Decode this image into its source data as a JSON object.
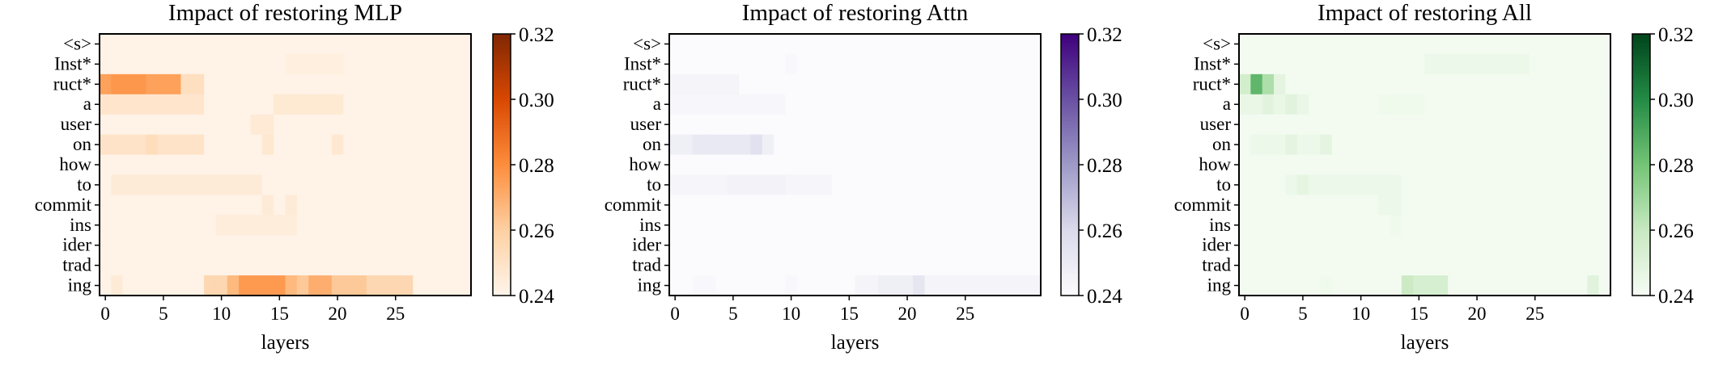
{
  "chart_data": [
    {
      "type": "heatmap",
      "title": "Impact of restoring MLP",
      "xlabel": "layers",
      "ylabel": "",
      "x_ticks": [
        0,
        5,
        10,
        15,
        20,
        25
      ],
      "n_layers": 32,
      "rows": [
        "<s>",
        "Inst*",
        "ruct*",
        "a",
        "user",
        "on",
        "how",
        "to",
        "commit",
        "ins",
        "ider",
        "trad",
        "ing"
      ],
      "colorbar": {
        "min": 0.24,
        "max": 0.32,
        "ticks": [
          "0.24",
          "0.26",
          "0.28",
          "0.30",
          "0.32"
        ],
        "colors": [
          "#fff5eb",
          "#fdd0a2",
          "#fd8d3c",
          "#d94801",
          "#7f2704"
        ]
      },
      "background": 0.2415,
      "cells": [
        {
          "row": 1,
          "layers": [
            16,
            20
          ],
          "value": 0.2435
        },
        {
          "row": 2,
          "layers": [
            0,
            6
          ],
          "value": 0.274
        },
        {
          "row": 2,
          "layers": [
            1,
            3
          ],
          "value": 0.277
        },
        {
          "row": 2,
          "layers": [
            7,
            8
          ],
          "value": 0.252
        },
        {
          "row": 3,
          "layers": [
            0,
            8
          ],
          "value": 0.2485
        },
        {
          "row": 3,
          "layers": [
            15,
            20
          ],
          "value": 0.2465
        },
        {
          "row": 4,
          "layers": [
            13,
            14
          ],
          "value": 0.246
        },
        {
          "row": 5,
          "layers": [
            0,
            8
          ],
          "value": 0.2495
        },
        {
          "row": 5,
          "layers": [
            4,
            4
          ],
          "value": 0.253
        },
        {
          "row": 5,
          "layers": [
            14,
            14
          ],
          "value": 0.247
        },
        {
          "row": 5,
          "layers": [
            20,
            20
          ],
          "value": 0.247
        },
        {
          "row": 7,
          "layers": [
            1,
            13
          ],
          "value": 0.2455
        },
        {
          "row": 8,
          "layers": [
            14,
            14
          ],
          "value": 0.2455
        },
        {
          "row": 8,
          "layers": [
            16,
            16
          ],
          "value": 0.2455
        },
        {
          "row": 9,
          "layers": [
            10,
            16
          ],
          "value": 0.2445
        },
        {
          "row": 12,
          "layers": [
            1,
            1
          ],
          "value": 0.2455
        },
        {
          "row": 12,
          "layers": [
            9,
            26
          ],
          "value": 0.256
        },
        {
          "row": 12,
          "layers": [
            11,
            16
          ],
          "value": 0.267
        },
        {
          "row": 12,
          "layers": [
            12,
            15
          ],
          "value": 0.276
        },
        {
          "row": 12,
          "layers": [
            17,
            22
          ],
          "value": 0.262
        },
        {
          "row": 12,
          "layers": [
            18,
            19
          ],
          "value": 0.27
        }
      ]
    },
    {
      "type": "heatmap",
      "title": "Impact of restoring Attn",
      "xlabel": "layers",
      "ylabel": "",
      "x_ticks": [
        0,
        5,
        10,
        15,
        20,
        25
      ],
      "n_layers": 32,
      "rows": [
        "<s>",
        "Inst*",
        "ruct*",
        "a",
        "user",
        "on",
        "how",
        "to",
        "commit",
        "ins",
        "ider",
        "trad",
        "ing"
      ],
      "colorbar": {
        "min": 0.24,
        "max": 0.32,
        "ticks": [
          "0.24",
          "0.26",
          "0.28",
          "0.30",
          "0.32"
        ],
        "colors": [
          "#fcfbfd",
          "#dadaeb",
          "#9e9ac8",
          "#6a51a3",
          "#3f007d"
        ]
      },
      "background": 0.2405,
      "cells": [
        {
          "row": 1,
          "layers": [
            10,
            10
          ],
          "value": 0.2425
        },
        {
          "row": 2,
          "layers": [
            0,
            5
          ],
          "value": 0.2445
        },
        {
          "row": 3,
          "layers": [
            0,
            9
          ],
          "value": 0.243
        },
        {
          "row": 5,
          "layers": [
            0,
            8
          ],
          "value": 0.2475
        },
        {
          "row": 5,
          "layers": [
            2,
            6
          ],
          "value": 0.251
        },
        {
          "row": 5,
          "layers": [
            7,
            7
          ],
          "value": 0.256
        },
        {
          "row": 7,
          "layers": [
            0,
            13
          ],
          "value": 0.2435
        },
        {
          "row": 7,
          "layers": [
            5,
            9
          ],
          "value": 0.2455
        },
        {
          "row": 12,
          "layers": [
            2,
            3
          ],
          "value": 0.2425
        },
        {
          "row": 12,
          "layers": [
            10,
            10
          ],
          "value": 0.2425
        },
        {
          "row": 12,
          "layers": [
            16,
            31
          ],
          "value": 0.2445
        },
        {
          "row": 12,
          "layers": [
            18,
            21
          ],
          "value": 0.2475
        },
        {
          "row": 12,
          "layers": [
            21,
            21
          ],
          "value": 0.253
        }
      ]
    },
    {
      "type": "heatmap",
      "title": "Impact of restoring All",
      "xlabel": "layers",
      "ylabel": "",
      "x_ticks": [
        0,
        5,
        10,
        15,
        20,
        25
      ],
      "n_layers": 32,
      "rows": [
        "<s>",
        "Inst*",
        "ruct*",
        "a",
        "user",
        "on",
        "how",
        "to",
        "commit",
        "ins",
        "ider",
        "trad",
        "ing"
      ],
      "colorbar": {
        "min": 0.24,
        "max": 0.32,
        "ticks": [
          "0.24",
          "0.26",
          "0.28",
          "0.30",
          "0.32"
        ],
        "colors": [
          "#f7fcf5",
          "#c7e9c0",
          "#74c476",
          "#238b45",
          "#00441b"
        ]
      },
      "background": 0.2415,
      "cells": [
        {
          "row": 1,
          "layers": [
            16,
            24
          ],
          "value": 0.2445
        },
        {
          "row": 2,
          "layers": [
            0,
            0
          ],
          "value": 0.255
        },
        {
          "row": 2,
          "layers": [
            1,
            1
          ],
          "value": 0.285
        },
        {
          "row": 2,
          "layers": [
            2,
            2
          ],
          "value": 0.266
        },
        {
          "row": 2,
          "layers": [
            3,
            3
          ],
          "value": 0.248
        },
        {
          "row": 3,
          "layers": [
            0,
            5
          ],
          "value": 0.2455
        },
        {
          "row": 3,
          "layers": [
            2,
            2
          ],
          "value": 0.249
        },
        {
          "row": 3,
          "layers": [
            4,
            4
          ],
          "value": 0.249
        },
        {
          "row": 3,
          "layers": [
            12,
            15
          ],
          "value": 0.2435
        },
        {
          "row": 5,
          "layers": [
            1,
            7
          ],
          "value": 0.2445
        },
        {
          "row": 5,
          "layers": [
            4,
            4
          ],
          "value": 0.248
        },
        {
          "row": 5,
          "layers": [
            7,
            7
          ],
          "value": 0.248
        },
        {
          "row": 7,
          "layers": [
            4,
            13
          ],
          "value": 0.2445
        },
        {
          "row": 7,
          "layers": [
            5,
            5
          ],
          "value": 0.247
        },
        {
          "row": 8,
          "layers": [
            12,
            13
          ],
          "value": 0.2445
        },
        {
          "row": 9,
          "layers": [
            13,
            13
          ],
          "value": 0.2435
        },
        {
          "row": 12,
          "layers": [
            7,
            7
          ],
          "value": 0.2435
        },
        {
          "row": 12,
          "layers": [
            14,
            17
          ],
          "value": 0.254
        },
        {
          "row": 12,
          "layers": [
            14,
            14
          ],
          "value": 0.258
        },
        {
          "row": 12,
          "layers": [
            30,
            30
          ],
          "value": 0.249
        }
      ]
    }
  ]
}
